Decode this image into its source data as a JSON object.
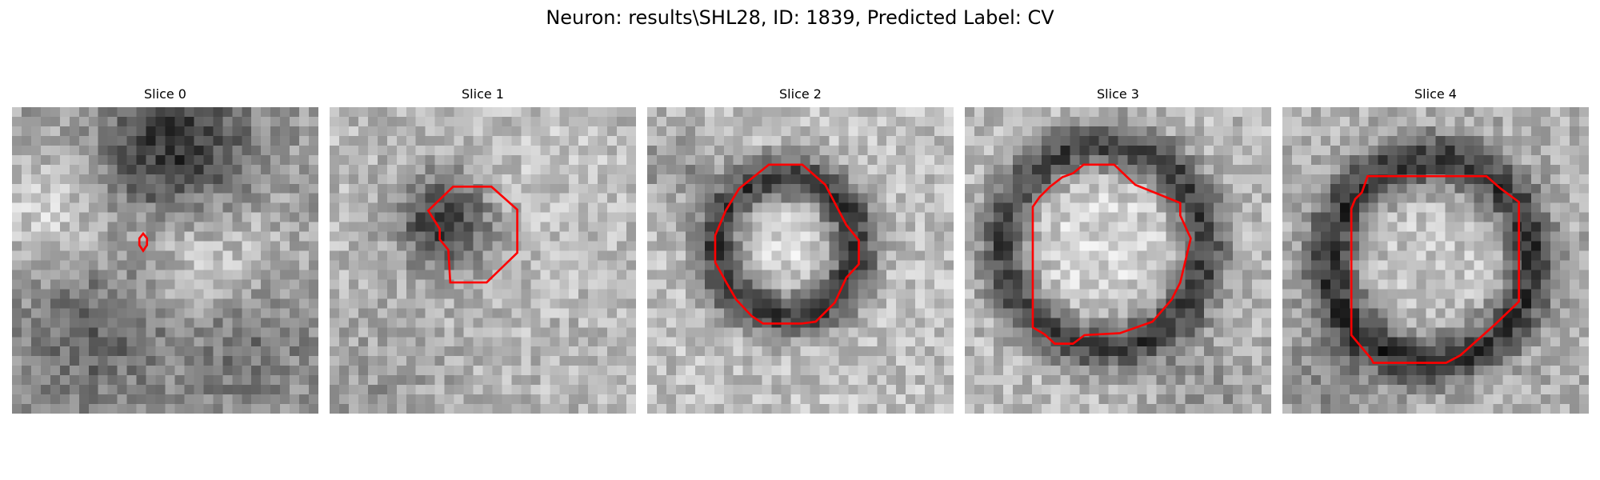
{
  "figure": {
    "title": "Neuron: results\\SHL28, ID: 1839, Predicted Label: CV"
  },
  "panels": [
    {
      "title": "Slice 0"
    },
    {
      "title": "Slice 1"
    },
    {
      "title": "Slice 2"
    },
    {
      "title": "Slice 3"
    },
    {
      "title": "Slice 4"
    }
  ],
  "colors": {
    "contour": "#ff0000",
    "colormap": "grayscale"
  }
}
